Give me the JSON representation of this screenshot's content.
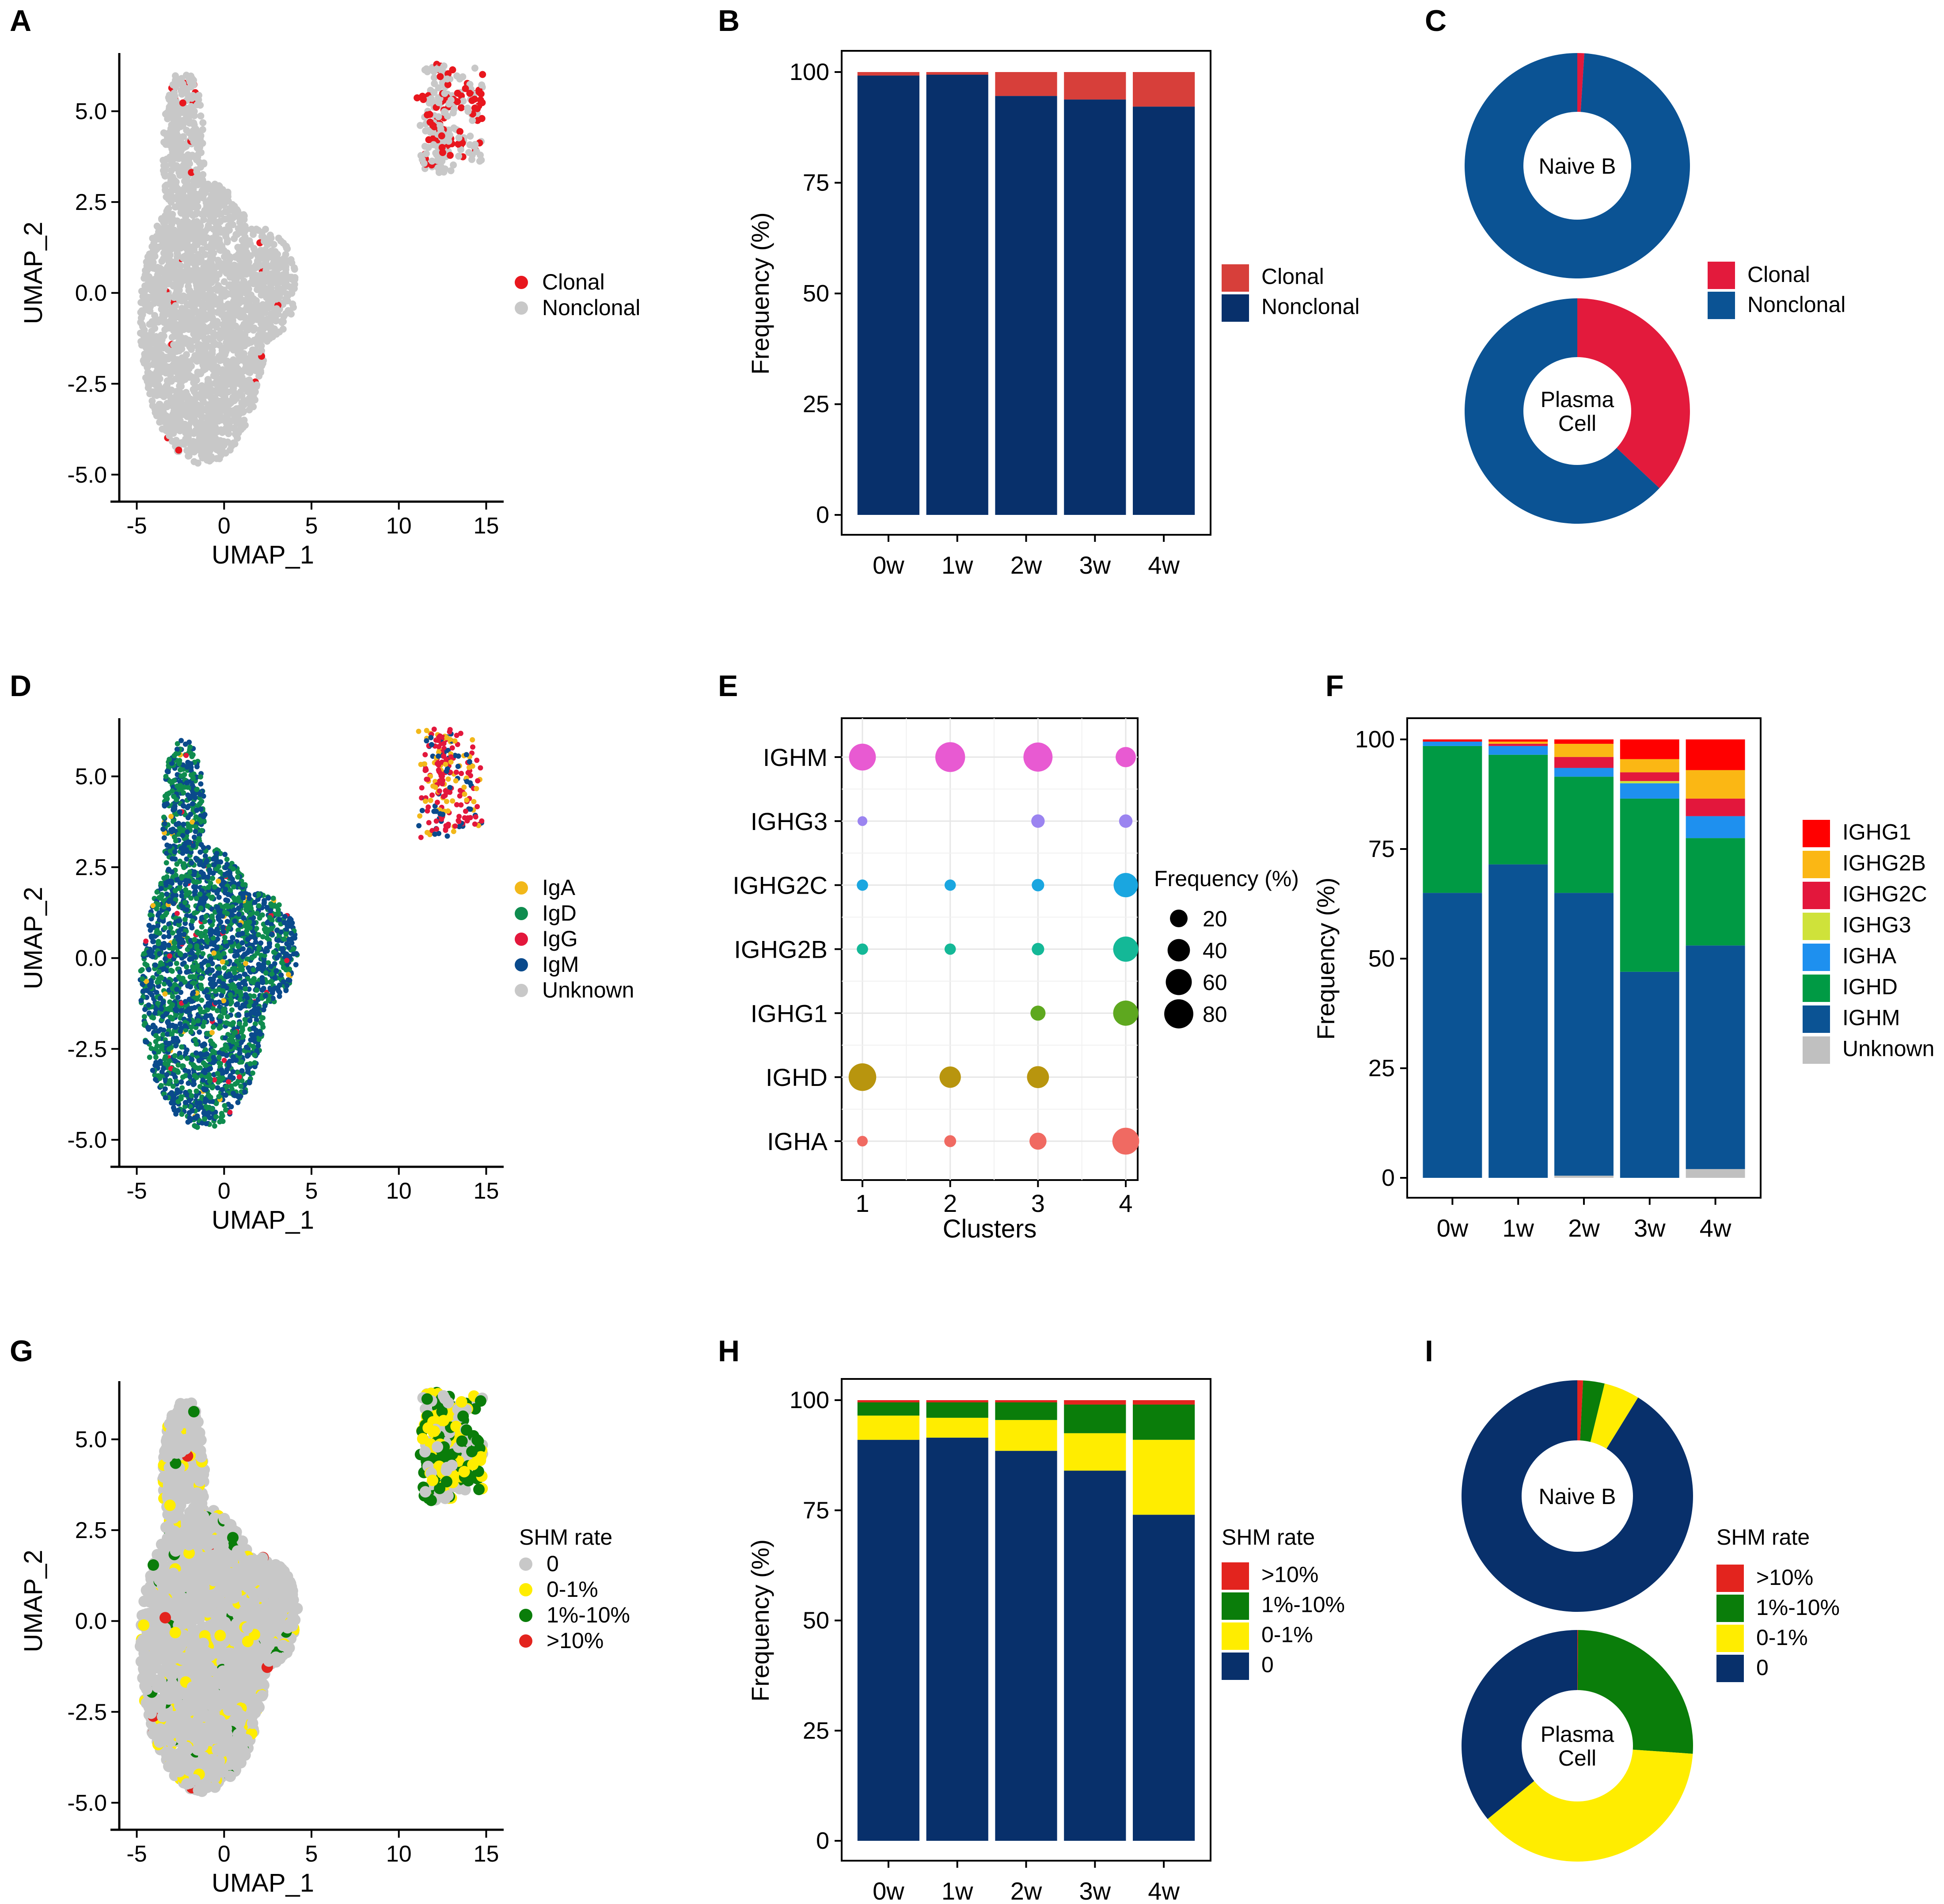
{
  "figure": {
    "panel_labels": [
      "A",
      "B",
      "C",
      "D",
      "E",
      "F",
      "G",
      "H",
      "I"
    ]
  },
  "chart_data": [
    {
      "panel": "A",
      "type": "scatter",
      "xlabel": "UMAP_1",
      "ylabel": "UMAP_2",
      "xlim": [
        -6,
        16
      ],
      "ylim": [
        -5.5,
        6.6
      ],
      "xticks": [
        -5,
        0,
        5,
        10,
        15
      ],
      "xtick_labels": [
        "-5",
        "0",
        "5",
        "10",
        "15"
      ],
      "yticks": [
        -5,
        -2.5,
        0,
        2.5,
        5
      ],
      "ytick_labels": [
        "-5.0",
        "-2.5",
        "0.0",
        "2.5",
        "5.0"
      ],
      "legend": [
        {
          "label": "Clonal",
          "color": "#e8171e"
        },
        {
          "label": "Nonclonal",
          "color": "#c8c8c8"
        }
      ],
      "point_summary": {
        "naive_cloud_center": [
          -1.5,
          0
        ],
        "plasma_cluster_center": [
          13,
          5
        ],
        "clonal_in_plasma_fraction": 0.35
      }
    },
    {
      "panel": "B",
      "type": "bar",
      "stacked": true,
      "categories": [
        "0w",
        "1w",
        "2w",
        "3w",
        "4w"
      ],
      "ylabel": "Frequency (%)",
      "xlabel": "",
      "ylim": [
        0,
        100
      ],
      "yticks": [
        0,
        25,
        50,
        75,
        100
      ],
      "ytick_labels": [
        "0",
        "25",
        "50",
        "75",
        "100"
      ],
      "series": [
        {
          "name": "Nonclonal",
          "color": "#08306b",
          "values": [
            99.2,
            99.4,
            94.6,
            93.8,
            92.2
          ]
        },
        {
          "name": "Clonal",
          "color": "#d73f3a",
          "values": [
            0.8,
            0.6,
            5.4,
            6.2,
            7.8
          ]
        }
      ],
      "legend": [
        {
          "label": "Clonal",
          "color": "#d73f3a"
        },
        {
          "label": "Nonclonal",
          "color": "#08306b"
        }
      ]
    },
    {
      "panel": "C",
      "type": "pie",
      "donut": true,
      "legend": [
        {
          "label": "Clonal",
          "color": "#e31a3c"
        },
        {
          "label": "Nonclonal",
          "color": "#0b5394"
        }
      ],
      "pies": [
        {
          "label_lines": [
            "Naive B"
          ],
          "slices": [
            {
              "name": "Clonal",
              "value": 1,
              "color": "#e31a3c"
            },
            {
              "name": "Nonclonal",
              "value": 99,
              "color": "#0b5394"
            }
          ]
        },
        {
          "label_lines": [
            "Plasma",
            "Cell"
          ],
          "slices": [
            {
              "name": "Clonal",
              "value": 37,
              "color": "#e31a3c"
            },
            {
              "name": "Nonclonal",
              "value": 63,
              "color": "#0b5394"
            }
          ]
        }
      ]
    },
    {
      "panel": "D",
      "type": "scatter",
      "xlabel": "UMAP_1",
      "ylabel": "UMAP_2",
      "xlim": [
        -6,
        16
      ],
      "ylim": [
        -5.5,
        6.6
      ],
      "xticks": [
        -5,
        0,
        5,
        10,
        15
      ],
      "xtick_labels": [
        "-5",
        "0",
        "5",
        "10",
        "15"
      ],
      "yticks": [
        -5,
        -2.5,
        0,
        2.5,
        5
      ],
      "ytick_labels": [
        "-5.0",
        "-2.5",
        "0.0",
        "2.5",
        "5.0"
      ],
      "legend": [
        {
          "label": "IgA",
          "color": "#f2b81a"
        },
        {
          "label": "IgD",
          "color": "#0f8c4f"
        },
        {
          "label": "IgG",
          "color": "#e3173c"
        },
        {
          "label": "IgM",
          "color": "#0a4a8c"
        },
        {
          "label": "Unknown",
          "color": "#c8c8c8"
        }
      ]
    },
    {
      "panel": "E",
      "type": "scatter",
      "subtype": "dotplot",
      "xlabel": "Clusters",
      "categories_x": [
        "1",
        "2",
        "3",
        "4"
      ],
      "categories_y": [
        "IGHA",
        "IGHD",
        "IGHG1",
        "IGHG2B",
        "IGHG2C",
        "IGHG3",
        "IGHM"
      ],
      "row_colors": {
        "IGHM": "#e85ad2",
        "IGHG3": "#9b84f0",
        "IGHG2C": "#1aa6e0",
        "IGHG2B": "#14b897",
        "IGHG1": "#5ea81f",
        "IGHD": "#b8950e",
        "IGHA": "#f06a62"
      },
      "values": {
        "IGHM": [
          65,
          85,
          80,
          30
        ],
        "IGHG3": [
          2,
          0,
          8,
          8
        ],
        "IGHG2C": [
          4,
          4,
          6,
          50
        ],
        "IGHG2B": [
          4,
          4,
          6,
          55
        ],
        "IGHG1": [
          0,
          0,
          12,
          55
        ],
        "IGHD": [
          70,
          35,
          38,
          0
        ],
        "IGHA": [
          3,
          5,
          18,
          65
        ]
      },
      "size_legend_title": "Frequency (%)",
      "size_legend": [
        20,
        40,
        60,
        80
      ],
      "size_legend_labels": [
        "20",
        "40",
        "60",
        "80"
      ]
    },
    {
      "panel": "F",
      "type": "bar",
      "stacked": true,
      "categories": [
        "0w",
        "1w",
        "2w",
        "3w",
        "4w"
      ],
      "ylabel": "Frequency (%)",
      "ylim": [
        0,
        100
      ],
      "yticks": [
        0,
        25,
        50,
        75,
        100
      ],
      "ytick_labels": [
        "0",
        "25",
        "50",
        "75",
        "100"
      ],
      "series": [
        {
          "name": "Unknown",
          "color": "#c0c0c0",
          "values": [
            0,
            0,
            0.5,
            0,
            2
          ]
        },
        {
          "name": "IGHM",
          "color": "#0b5394",
          "values": [
            65,
            71.5,
            64.5,
            47,
            51
          ]
        },
        {
          "name": "IGHD",
          "color": "#009a44",
          "values": [
            33.5,
            25,
            26.5,
            39.5,
            24.5
          ]
        },
        {
          "name": "IGHA",
          "color": "#1e90ef",
          "values": [
            1,
            2,
            2,
            3.5,
            5
          ]
        },
        {
          "name": "IGHG3",
          "color": "#cfe23a",
          "values": [
            0,
            0,
            0,
            0.5,
            0
          ]
        },
        {
          "name": "IGHG2C",
          "color": "#e3173c",
          "values": [
            0,
            0.5,
            2.5,
            2,
            4
          ]
        },
        {
          "name": "IGHG2B",
          "color": "#fbb714",
          "values": [
            0,
            0.5,
            3,
            3,
            6.5
          ]
        },
        {
          "name": "IGHG1",
          "color": "#ff0000",
          "values": [
            0.5,
            0.5,
            1,
            4.5,
            7
          ]
        }
      ],
      "legend": [
        {
          "label": "IGHG1",
          "color": "#ff0000"
        },
        {
          "label": "IGHG2B",
          "color": "#fbb714"
        },
        {
          "label": "IGHG2C",
          "color": "#e3173c"
        },
        {
          "label": "IGHG3",
          "color": "#cfe23a"
        },
        {
          "label": "IGHA",
          "color": "#1e90ef"
        },
        {
          "label": "IGHD",
          "color": "#009a44"
        },
        {
          "label": "IGHM",
          "color": "#0b5394"
        },
        {
          "label": "Unknown",
          "color": "#c0c0c0"
        }
      ]
    },
    {
      "panel": "G",
      "type": "scatter",
      "xlabel": "UMAP_1",
      "ylabel": "UMAP_2",
      "xlim": [
        -6,
        16
      ],
      "ylim": [
        -5.5,
        6.6
      ],
      "xticks": [
        -5,
        0,
        5,
        10,
        15
      ],
      "xtick_labels": [
        "-5",
        "0",
        "5",
        "10",
        "15"
      ],
      "yticks": [
        -5,
        -2.5,
        0,
        2.5,
        5
      ],
      "ytick_labels": [
        "-5.0",
        "-2.5",
        "0.0",
        "2.5",
        "5.0"
      ],
      "legend_title": "SHM rate",
      "legend": [
        {
          "label": "0",
          "color": "#c8c8c8"
        },
        {
          "label": "0-1%",
          "color": "#ffed00"
        },
        {
          "label": "1%-10%",
          "color": "#0a7d0a"
        },
        {
          "label": ">10%",
          "color": "#e3241e"
        }
      ]
    },
    {
      "panel": "H",
      "type": "bar",
      "stacked": true,
      "categories": [
        "0w",
        "1w",
        "2w",
        "3w",
        "4w"
      ],
      "ylabel": "Frequency (%)",
      "ylim": [
        0,
        100
      ],
      "yticks": [
        0,
        25,
        50,
        75,
        100
      ],
      "ytick_labels": [
        "0",
        "25",
        "50",
        "75",
        "100"
      ],
      "series": [
        {
          "name": "0",
          "color": "#08306b",
          "values": [
            91,
            91.5,
            88.5,
            84,
            74
          ]
        },
        {
          "name": "0-1%",
          "color": "#ffed00",
          "values": [
            5.5,
            4.5,
            7,
            8.5,
            17
          ]
        },
        {
          "name": "1%-10%",
          "color": "#0a7d0a",
          "values": [
            3,
            3.5,
            4,
            6.5,
            8
          ]
        },
        {
          "name": ">10%",
          "color": "#e3241e",
          "values": [
            0.5,
            0.5,
            0.5,
            1,
            1
          ]
        }
      ],
      "legend_title": "SHM rate",
      "legend": [
        {
          "label": ">10%",
          "color": "#e3241e"
        },
        {
          "label": "1%-10%",
          "color": "#0a7d0a"
        },
        {
          "label": "0-1%",
          "color": "#ffed00"
        },
        {
          "label": "0",
          "color": "#08306b"
        }
      ]
    },
    {
      "panel": "I",
      "type": "pie",
      "donut": true,
      "legend_title": "SHM rate",
      "legend": [
        {
          "label": ">10%",
          "color": "#e3241e"
        },
        {
          "label": "1%-10%",
          "color": "#0a7d0a"
        },
        {
          "label": "0-1%",
          "color": "#ffed00"
        },
        {
          "label": "0",
          "color": "#08306b"
        }
      ],
      "pies": [
        {
          "label_lines": [
            "Naive B"
          ],
          "slices": [
            {
              "name": ">10%",
              "value": 0.8,
              "color": "#e3241e"
            },
            {
              "name": "1%-10%",
              "value": 3,
              "color": "#0a7d0a"
            },
            {
              "name": "0-1%",
              "value": 5,
              "color": "#ffed00"
            },
            {
              "name": "0",
              "value": 91.2,
              "color": "#08306b"
            }
          ]
        },
        {
          "label_lines": [
            "Plasma",
            "Cell"
          ],
          "slices": [
            {
              "name": ">10%",
              "value": 0.1,
              "color": "#e3241e"
            },
            {
              "name": "1%-10%",
              "value": 26,
              "color": "#0a7d0a"
            },
            {
              "name": "0-1%",
              "value": 38,
              "color": "#ffed00"
            },
            {
              "name": "0",
              "value": 35.9,
              "color": "#08306b"
            }
          ]
        }
      ]
    }
  ]
}
